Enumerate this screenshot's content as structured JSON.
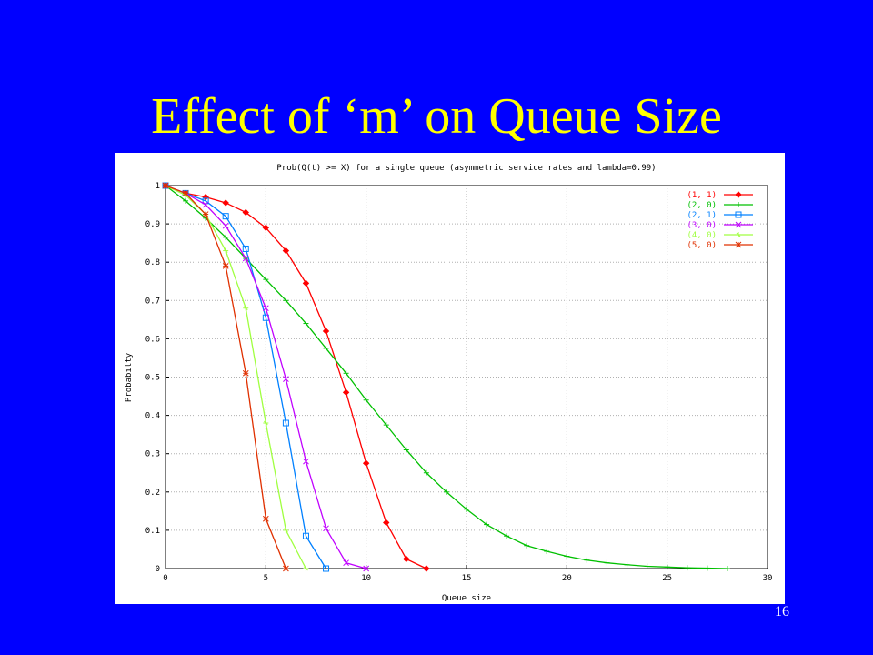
{
  "slide": {
    "title": "Effect of ‘m’ on Queue Size",
    "number": "16"
  },
  "chart_data": {
    "type": "line",
    "title": "Prob(Q(t) >= X) for a single queue (asymmetric service rates and lambda=0.99)",
    "xlabel": "Queue size",
    "ylabel": "Probabilty",
    "xlim": [
      0,
      30
    ],
    "ylim": [
      0,
      1
    ],
    "xticks": [
      0,
      5,
      10,
      15,
      20,
      25,
      30
    ],
    "yticks": [
      0,
      0.1,
      0.2,
      0.3,
      0.4,
      0.5,
      0.6,
      0.7,
      0.8,
      0.9,
      1
    ],
    "grid": true,
    "legend_position": "top-right",
    "series": [
      {
        "name": "(1, 1)",
        "color": "#ff0000",
        "marker": "diamond",
        "x": [
          0,
          1,
          2,
          3,
          4,
          5,
          6,
          7,
          8,
          9,
          10,
          11,
          12,
          13
        ],
        "y": [
          1,
          0.98,
          0.97,
          0.955,
          0.93,
          0.89,
          0.83,
          0.745,
          0.62,
          0.46,
          0.275,
          0.12,
          0.025,
          0
        ]
      },
      {
        "name": "(2, 0)",
        "color": "#00c000",
        "marker": "plus",
        "x": [
          0,
          1,
          2,
          3,
          4,
          5,
          6,
          7,
          8,
          9,
          10,
          11,
          12,
          13,
          14,
          15,
          16,
          17,
          18,
          19,
          20,
          21,
          22,
          23,
          24,
          25,
          26,
          27,
          28
        ],
        "y": [
          1,
          0.96,
          0.915,
          0.865,
          0.81,
          0.755,
          0.7,
          0.64,
          0.575,
          0.51,
          0.44,
          0.375,
          0.31,
          0.25,
          0.2,
          0.155,
          0.115,
          0.085,
          0.06,
          0.045,
          0.032,
          0.022,
          0.015,
          0.01,
          0.006,
          0.004,
          0.002,
          0.001,
          0
        ]
      },
      {
        "name": "(2, 1)",
        "color": "#0080ff",
        "marker": "square",
        "x": [
          0,
          1,
          2,
          3,
          4,
          5,
          6,
          7,
          8
        ],
        "y": [
          1,
          0.98,
          0.96,
          0.92,
          0.835,
          0.655,
          0.38,
          0.085,
          0
        ]
      },
      {
        "name": "(3, 0)",
        "color": "#c000ff",
        "marker": "x",
        "x": [
          0,
          1,
          2,
          3,
          4,
          5,
          6,
          7,
          8,
          9,
          10
        ],
        "y": [
          1,
          0.98,
          0.95,
          0.895,
          0.81,
          0.68,
          0.495,
          0.28,
          0.105,
          0.015,
          0
        ]
      },
      {
        "name": "(4, 0)",
        "color": "#a0ff40",
        "marker": "star",
        "x": [
          0,
          1,
          2,
          3,
          4,
          5,
          6,
          7
        ],
        "y": [
          1,
          0.975,
          0.925,
          0.83,
          0.68,
          0.38,
          0.1,
          0
        ]
      },
      {
        "name": "(5, 0)",
        "color": "#e03000",
        "marker": "asterisk",
        "x": [
          0,
          1,
          2,
          3,
          4,
          5,
          6
        ],
        "y": [
          1,
          0.98,
          0.925,
          0.79,
          0.51,
          0.13,
          0
        ]
      }
    ]
  }
}
